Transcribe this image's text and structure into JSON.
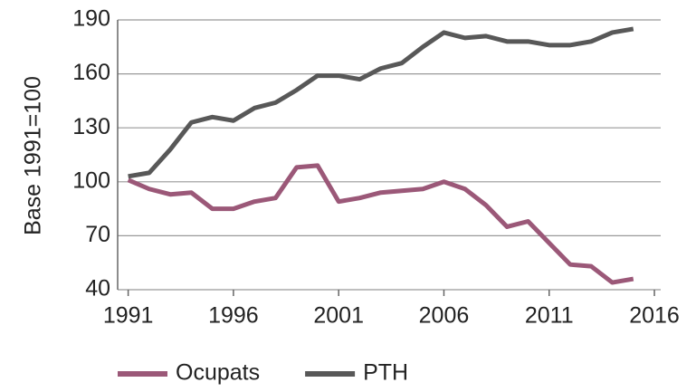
{
  "chart_data": {
    "type": "line",
    "ylabel": "Base 1991=100",
    "x": [
      1991,
      1992,
      1993,
      1994,
      1995,
      1996,
      1997,
      1998,
      1999,
      2000,
      2001,
      2002,
      2003,
      2004,
      2005,
      2006,
      2007,
      2008,
      2009,
      2010,
      2011,
      2012,
      2013,
      2014,
      2015
    ],
    "series": [
      {
        "name": "Ocupats",
        "color": "#9b5878",
        "values": [
          101,
          96,
          93,
          94,
          85,
          85,
          89,
          91,
          108,
          109,
          89,
          91,
          94,
          95,
          96,
          100,
          96,
          87,
          75,
          78,
          66,
          54,
          53,
          44,
          46
        ]
      },
      {
        "name": "PTH",
        "color": "#585858",
        "values": [
          103,
          105,
          118,
          133,
          136,
          134,
          141,
          144,
          151,
          159,
          159,
          157,
          163,
          166,
          175,
          183,
          180,
          181,
          178,
          178,
          176,
          176,
          178,
          183,
          185
        ]
      }
    ],
    "xlim": [
      1990.5,
      2016.3
    ],
    "xticks": [
      1991,
      1996,
      2001,
      2006,
      2011,
      2016
    ],
    "ylim": [
      40,
      190
    ],
    "yticks": [
      40,
      70,
      100,
      130,
      160,
      190
    ],
    "grid": true,
    "legend": "bottom"
  }
}
